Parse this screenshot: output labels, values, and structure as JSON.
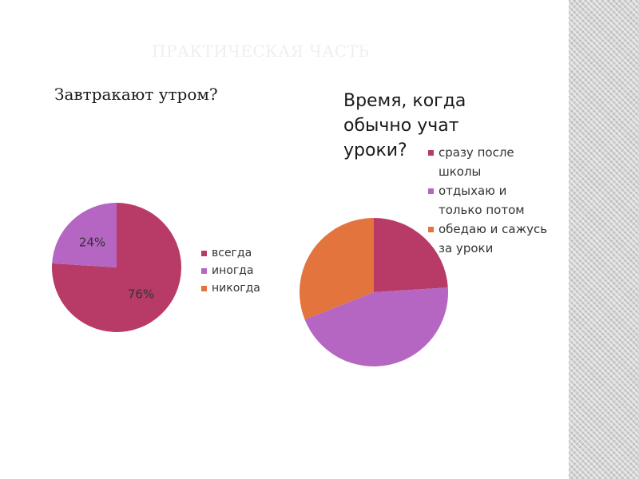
{
  "slide": {
    "title": "ПРАКТИЧЕСКАЯ ЧАСТЬ"
  },
  "chart_data": [
    {
      "type": "pie",
      "title": "Завтракают  утром?",
      "categories": [
        "всегда",
        "иногда",
        "никогда"
      ],
      "values": [
        76,
        24,
        0
      ],
      "data_labels": [
        "76%",
        "24%",
        ""
      ],
      "colors": [
        "#b83a67",
        "#b565c2",
        "#e3743e"
      ],
      "legend_position": "right"
    },
    {
      "type": "pie",
      "title": "Время, когда обычно учат уроки?",
      "categories": [
        "сразу после школы",
        "отдыхаю и только потом",
        "обедаю и сажусь за уроки"
      ],
      "values": [
        24,
        45,
        31
      ],
      "colors": [
        "#b83a67",
        "#b565c2",
        "#e3743e"
      ],
      "legend_position": "right"
    }
  ]
}
